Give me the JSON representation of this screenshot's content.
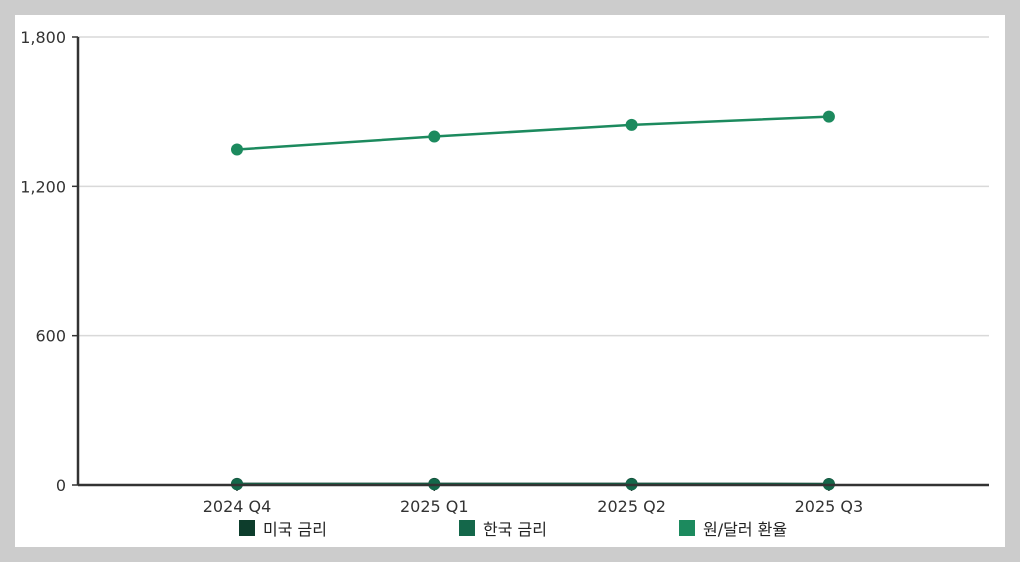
{
  "chart_data": {
    "type": "line",
    "title": "",
    "xlabel": "",
    "ylabel": "",
    "categories": [
      "2024 Q4",
      "2025 Q1",
      "2025 Q2",
      "2025 Q3"
    ],
    "ylim": [
      0,
      1800
    ],
    "yticks": [
      0,
      600,
      1200,
      1800
    ],
    "ytick_labels": [
      "0",
      "600",
      "1,200",
      "1,800"
    ],
    "grid": true,
    "legend_position": "bottom",
    "series": [
      {
        "name": "미국 금리",
        "color": "#0d3d2c",
        "values": [
          4.5,
          4.5,
          4.5,
          4.25
        ]
      },
      {
        "name": "한국 금리",
        "color": "#14674a",
        "values": [
          3.0,
          2.75,
          2.5,
          2.5
        ]
      },
      {
        "name": "원/달러 환율",
        "color": "#1c8a5e",
        "values": [
          1348,
          1400,
          1447,
          1480
        ]
      }
    ]
  }
}
